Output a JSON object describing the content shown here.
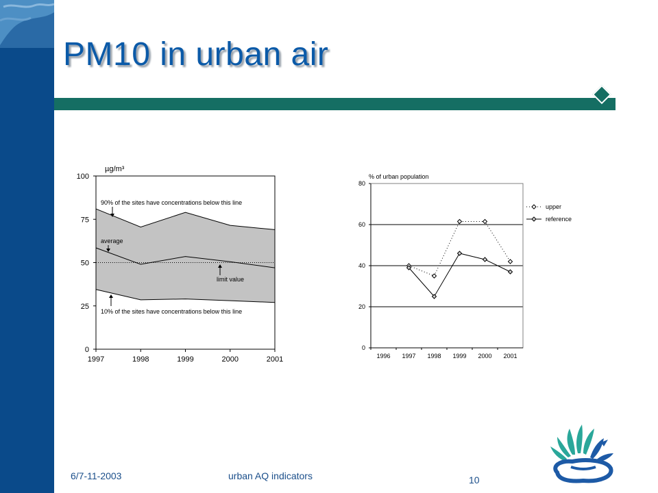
{
  "slide": {
    "title": "PM10 in urban air",
    "footer_date": "6/7-11-2003",
    "footer_center": "urban AQ indicators",
    "page_number": "10",
    "colors": {
      "sidebar": "#0a4a8a",
      "title": "#0b5aa8",
      "accent_bar": "#156e63",
      "footer_text": "#1a4e8a"
    }
  },
  "chart_data": [
    {
      "type": "area",
      "unit_label": "µg/m³",
      "x": [
        1997,
        1998,
        1999,
        2000,
        2001
      ],
      "x_tick_labels": [
        "1997",
        "1998",
        "1999",
        "2000",
        "2001"
      ],
      "y_ticks": [
        "0",
        "25",
        "50",
        "75",
        "100"
      ],
      "ylim": [
        0,
        100
      ],
      "series": [
        {
          "values": [
            81,
            70.5,
            79,
            71.5,
            69
          ]
        },
        {
          "values": [
            58.5,
            49,
            53.5,
            50.5,
            47
          ]
        },
        {
          "values": [
            34.5,
            28.5,
            29,
            28,
            27
          ]
        }
      ],
      "limit_value": 50,
      "annotations": {
        "upper": "90% of the sites have concentrations below this line",
        "average": "average",
        "limit": "limit value",
        "lower": "10% of the sites have concentrations below this line"
      },
      "grid": false
    },
    {
      "type": "line",
      "ylabel": "% of urban population",
      "x_tick_labels": [
        "1996",
        "1997",
        "1998",
        "1999",
        "2000",
        "2001"
      ],
      "y_ticks": [
        "0",
        "20",
        "40",
        "60",
        "80"
      ],
      "ylim": [
        0,
        80
      ],
      "x": [
        1997,
        1998,
        1999,
        2000,
        2001
      ],
      "series": [
        {
          "name": "upper",
          "style": "dotted",
          "values": [
            40,
            35,
            61.5,
            61.5,
            42
          ]
        },
        {
          "name": "reference",
          "style": "solid",
          "values": [
            39,
            25,
            46,
            43,
            37
          ]
        }
      ],
      "legend_position": "right",
      "grid": "horizontal"
    }
  ]
}
